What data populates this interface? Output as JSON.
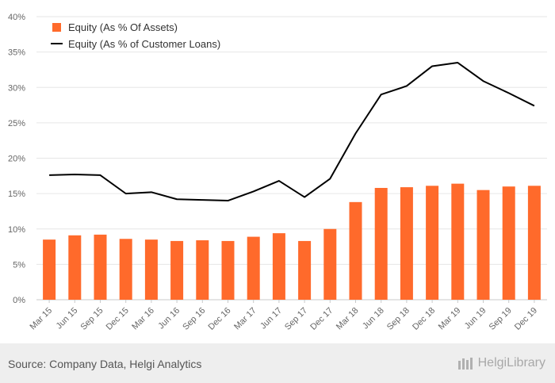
{
  "chart_data": {
    "type": "bar+line",
    "title": "",
    "xlabel": "",
    "ylabel": "",
    "ylim": [
      0,
      40
    ],
    "yticks": [
      "0%",
      "5%",
      "10%",
      "15%",
      "20%",
      "25%",
      "30%",
      "35%",
      "40%"
    ],
    "categories": [
      "Mar 15",
      "Jun 15",
      "Sep 15",
      "Dec 15",
      "Mar 16",
      "Jun 16",
      "Sep 16",
      "Dec 16",
      "Mar 17",
      "Jun 17",
      "Sep 17",
      "Dec 17",
      "Mar 18",
      "Jun 18",
      "Sep 18",
      "Dec 18",
      "Mar 19",
      "Jun 19",
      "Sep 19",
      "Dec 19"
    ],
    "series": [
      {
        "name": "Equity (As % Of Assets)",
        "type": "bar",
        "color": "#ff6a2b",
        "values": [
          8.5,
          9.1,
          9.2,
          8.6,
          8.5,
          8.3,
          8.4,
          8.3,
          8.9,
          9.4,
          8.3,
          10.0,
          13.8,
          15.8,
          15.9,
          16.1,
          16.4,
          15.5,
          16.0,
          16.1
        ]
      },
      {
        "name": "Equity (As % of Customer Loans)",
        "type": "line",
        "color": "#000000",
        "values": [
          17.6,
          17.7,
          17.6,
          15.0,
          15.2,
          14.2,
          14.1,
          14.0,
          15.3,
          16.8,
          14.5,
          17.1,
          23.5,
          29.0,
          30.2,
          33.0,
          33.5,
          30.9,
          29.2,
          27.4
        ]
      }
    ]
  },
  "footer": {
    "source": "Source: Company Data, Helgi Analytics",
    "brand": "HelgiLibrary"
  },
  "colors": {
    "bar": "#ff6a2b",
    "line": "#000000",
    "grid": "#e6e6e6"
  }
}
